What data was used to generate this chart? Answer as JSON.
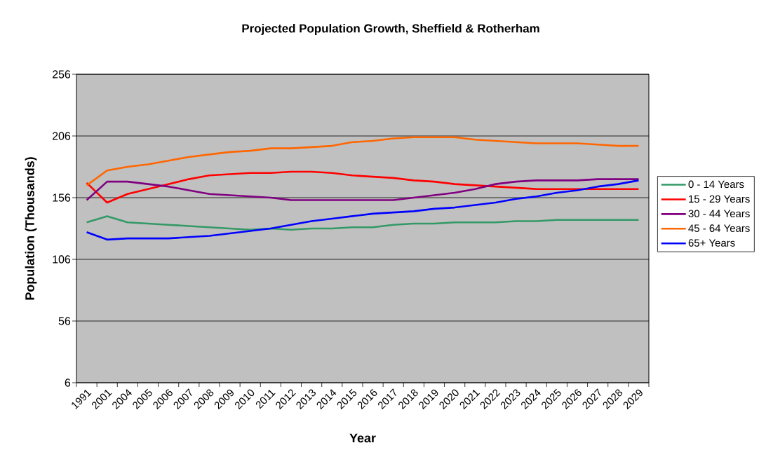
{
  "chart_data": {
    "type": "line",
    "title": "Projected Population Growth, Sheffield & Rotherham",
    "xlabel": "Year",
    "ylabel": "Population (Thousands)",
    "categories": [
      "1991",
      "2001",
      "2004",
      "2005",
      "2006",
      "2007",
      "2008",
      "2009",
      "2010",
      "2011",
      "2012",
      "2013",
      "2014",
      "2015",
      "2016",
      "2017",
      "2018",
      "2019",
      "2020",
      "2021",
      "2022",
      "2023",
      "2024",
      "2025",
      "2026",
      "2027",
      "2028",
      "2029"
    ],
    "series": [
      {
        "name": "0 - 14 Years",
        "color": "#339966",
        "values": [
          136,
          141,
          136,
          135,
          134,
          133,
          132,
          131,
          130,
          131,
          130,
          131,
          131,
          132,
          132,
          134,
          135,
          135,
          136,
          136,
          136,
          137,
          137,
          138,
          138,
          138,
          138,
          138
        ]
      },
      {
        "name": "15 - 29 Years",
        "color": "#ff0000",
        "values": [
          168,
          152,
          159,
          163,
          167,
          171,
          174,
          175,
          176,
          176,
          177,
          177,
          176,
          174,
          173,
          172,
          170,
          169,
          167,
          166,
          165,
          164,
          163,
          163,
          163,
          163,
          163,
          163
        ]
      },
      {
        "name": "30 - 44 Years",
        "color": "#800080",
        "values": [
          154,
          169,
          169,
          167,
          165,
          162,
          159,
          158,
          157,
          156,
          154,
          154,
          154,
          154,
          154,
          154,
          156,
          158,
          160,
          163,
          167,
          169,
          170,
          170,
          170,
          171,
          171,
          171
        ]
      },
      {
        "name": "45 - 64 Years",
        "color": "#ff6600",
        "values": [
          166,
          178,
          181,
          183,
          186,
          189,
          191,
          193,
          194,
          196,
          196,
          197,
          198,
          201,
          202,
          204,
          205,
          205,
          205,
          203,
          202,
          201,
          200,
          200,
          200,
          199,
          198,
          198
        ]
      },
      {
        "name": "65+ Years",
        "color": "#0000ff",
        "values": [
          128,
          122,
          123,
          123,
          123,
          124,
          125,
          127,
          129,
          131,
          134,
          137,
          139,
          141,
          143,
          144,
          145,
          147,
          148,
          150,
          152,
          155,
          157,
          160,
          162,
          165,
          167,
          170
        ]
      }
    ],
    "ylim": [
      6,
      256
    ],
    "yticks": [
      6,
      56,
      106,
      156,
      206,
      256
    ],
    "grid": "y",
    "legend": "right",
    "marker": "none",
    "line_style": "solid"
  }
}
